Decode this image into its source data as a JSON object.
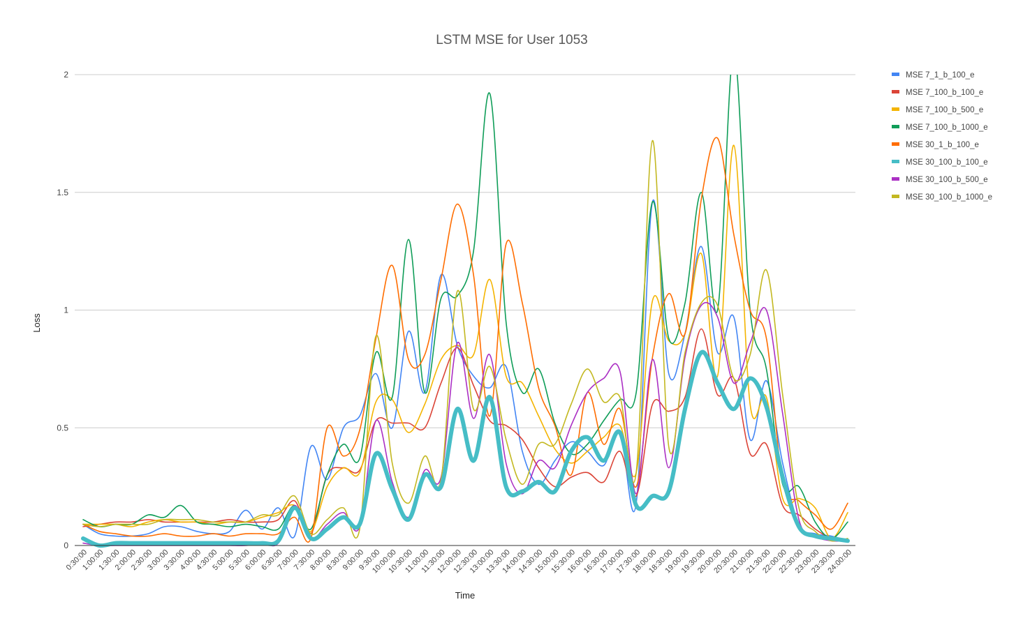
{
  "chart_data": {
    "type": "line",
    "title": "LSTM MSE for User 1053",
    "xlabel": "Time",
    "ylabel": "Loss",
    "ylim": [
      0,
      2
    ],
    "yticks": [
      0,
      0.5,
      1,
      1.5,
      2
    ],
    "ytick_labels": [
      "0",
      "0.5",
      "1",
      "1.5",
      "2"
    ],
    "grid": true,
    "legend_position": "right",
    "categories": [
      "0:30:00",
      "1:00:00",
      "1:30:00",
      "2:00:00",
      "2:30:00",
      "3:00:00",
      "3:30:00",
      "4:00:00",
      "4:30:00",
      "5:00:00",
      "5:30:00",
      "6:00:00",
      "6:30:00",
      "7:00:00",
      "7:30:00",
      "8:00:00",
      "8:30:00",
      "9:00:00",
      "9:30:00",
      "10:00:00",
      "10:30:00",
      "11:00:00",
      "11:30:00",
      "12:00:00",
      "12:30:00",
      "13:00:00",
      "13:30:00",
      "14:00:00",
      "14:30:00",
      "15:00:00",
      "15:30:00",
      "16:00:00",
      "16:30:00",
      "17:00:00",
      "17:30:00",
      "18:00:00",
      "18:30:00",
      "19:00:00",
      "19:30:00",
      "20:00:00",
      "20:30:00",
      "21:00:00",
      "21:30:00",
      "22:00:00",
      "22:30:00",
      "23:00:00",
      "23:30:00",
      "24:00:00"
    ],
    "series": [
      {
        "name": "MSE 7_1_b_100_e",
        "color": "#4285f4",
        "width": 1.6,
        "values": [
          0.09,
          0.05,
          0.04,
          0.04,
          0.05,
          0.08,
          0.08,
          0.06,
          0.05,
          0.06,
          0.15,
          0.07,
          0.16,
          0.04,
          0.42,
          0.28,
          0.5,
          0.55,
          0.73,
          0.5,
          0.91,
          0.65,
          1.15,
          0.85,
          0.72,
          0.67,
          0.76,
          0.4,
          0.26,
          0.36,
          0.44,
          0.4,
          0.34,
          0.48,
          0.18,
          1.46,
          0.73,
          0.9,
          1.27,
          0.82,
          0.97,
          0.45,
          0.7,
          0.35,
          0.09,
          0.05,
          0.04,
          0.02
        ]
      },
      {
        "name": "MSE 7_100_b_100_e",
        "color": "#db4437",
        "width": 1.6,
        "values": [
          0.08,
          0.09,
          0.1,
          0.1,
          0.11,
          0.1,
          0.1,
          0.1,
          0.1,
          0.11,
          0.1,
          0.1,
          0.11,
          0.19,
          0.05,
          0.3,
          0.33,
          0.32,
          0.53,
          0.52,
          0.52,
          0.5,
          0.69,
          0.84,
          0.68,
          0.53,
          0.51,
          0.45,
          0.33,
          0.25,
          0.29,
          0.31,
          0.27,
          0.4,
          0.21,
          0.6,
          0.57,
          0.63,
          0.92,
          0.64,
          0.71,
          0.39,
          0.43,
          0.17,
          0.13,
          0.07,
          0.03,
          0.02
        ]
      },
      {
        "name": "MSE 7_100_b_500_e",
        "color": "#f4b400",
        "width": 1.6,
        "values": [
          0.09,
          0.09,
          0.09,
          0.08,
          0.1,
          0.11,
          0.1,
          0.1,
          0.09,
          0.1,
          0.1,
          0.12,
          0.14,
          0.17,
          0.06,
          0.25,
          0.33,
          0.31,
          0.61,
          0.62,
          0.48,
          0.6,
          0.79,
          0.85,
          0.81,
          1.13,
          0.72,
          0.69,
          0.55,
          0.41,
          0.35,
          0.4,
          0.46,
          0.51,
          0.31,
          1.04,
          0.87,
          0.9,
          1.24,
          0.72,
          1.7,
          0.6,
          0.63,
          0.2,
          0.2,
          0.16,
          0.03,
          0.14
        ]
      },
      {
        "name": "MSE 7_100_b_1000_e",
        "color": "#0f9d58",
        "width": 1.6,
        "values": [
          0.11,
          0.08,
          0.09,
          0.09,
          0.13,
          0.12,
          0.17,
          0.1,
          0.09,
          0.08,
          0.09,
          0.08,
          0.07,
          0.17,
          0.07,
          0.3,
          0.43,
          0.37,
          0.82,
          0.63,
          1.3,
          0.65,
          1.05,
          1.06,
          1.25,
          1.92,
          0.95,
          0.65,
          0.75,
          0.52,
          0.39,
          0.43,
          0.53,
          0.62,
          0.65,
          1.46,
          0.88,
          1.03,
          1.5,
          1.0,
          2.1,
          1.0,
          0.75,
          0.26,
          0.25,
          0.1,
          0.03,
          0.1
        ]
      },
      {
        "name": "MSE 30_1_b_100_e",
        "color": "#ff6d00",
        "width": 1.6,
        "values": [
          0.09,
          0.06,
          0.05,
          0.04,
          0.04,
          0.05,
          0.04,
          0.04,
          0.05,
          0.04,
          0.05,
          0.05,
          0.05,
          0.12,
          0.03,
          0.5,
          0.38,
          0.49,
          0.88,
          1.19,
          0.79,
          0.81,
          1.13,
          1.45,
          1.15,
          0.55,
          1.28,
          1.03,
          0.67,
          0.51,
          0.3,
          0.65,
          0.43,
          0.58,
          0.25,
          0.8,
          1.07,
          0.9,
          1.47,
          1.73,
          1.32,
          1.0,
          0.88,
          0.27,
          0.19,
          0.13,
          0.07,
          0.18
        ]
      },
      {
        "name": "MSE 30_100_b_100_e",
        "color": "#46bdc6",
        "width": 6,
        "values": [
          0.03,
          0.0,
          0.01,
          0.01,
          0.01,
          0.01,
          0.01,
          0.01,
          0.01,
          0.01,
          0.01,
          0.01,
          0.02,
          0.16,
          0.03,
          0.07,
          0.12,
          0.09,
          0.39,
          0.24,
          0.11,
          0.3,
          0.25,
          0.58,
          0.36,
          0.63,
          0.25,
          0.23,
          0.27,
          0.23,
          0.4,
          0.46,
          0.36,
          0.48,
          0.17,
          0.21,
          0.23,
          0.58,
          0.82,
          0.69,
          0.58,
          0.71,
          0.59,
          0.29,
          0.08,
          0.04,
          0.03,
          0.02
        ]
      },
      {
        "name": "MSE 30_100_b_500_e",
        "color": "#ab30c4",
        "width": 1.6,
        "values": [
          0.01,
          0.0,
          0.0,
          0.0,
          0.0,
          0.0,
          0.0,
          0.0,
          0.0,
          0.0,
          0.0,
          0.01,
          0.01,
          0.17,
          0.03,
          0.09,
          0.14,
          0.08,
          0.53,
          0.27,
          0.12,
          0.32,
          0.29,
          0.86,
          0.54,
          0.81,
          0.35,
          0.22,
          0.36,
          0.33,
          0.51,
          0.65,
          0.71,
          0.74,
          0.22,
          0.79,
          0.33,
          0.8,
          1.02,
          0.97,
          0.69,
          0.86,
          1.0,
          0.56,
          0.11,
          0.04,
          0.02,
          0.02
        ]
      },
      {
        "name": "MSE 30_100_b_1000_e",
        "color": "#c3b821",
        "width": 1.6,
        "values": [
          0.09,
          0.08,
          0.09,
          0.09,
          0.09,
          0.11,
          0.11,
          0.11,
          0.1,
          0.1,
          0.1,
          0.13,
          0.13,
          0.21,
          0.05,
          0.11,
          0.16,
          0.07,
          0.89,
          0.35,
          0.18,
          0.38,
          0.28,
          1.08,
          0.58,
          0.76,
          0.45,
          0.26,
          0.43,
          0.43,
          0.6,
          0.75,
          0.61,
          0.63,
          0.31,
          1.72,
          0.42,
          0.82,
          1.03,
          1.02,
          0.71,
          0.81,
          1.17,
          0.64,
          0.16,
          0.06,
          0.02,
          0.03
        ]
      }
    ]
  }
}
